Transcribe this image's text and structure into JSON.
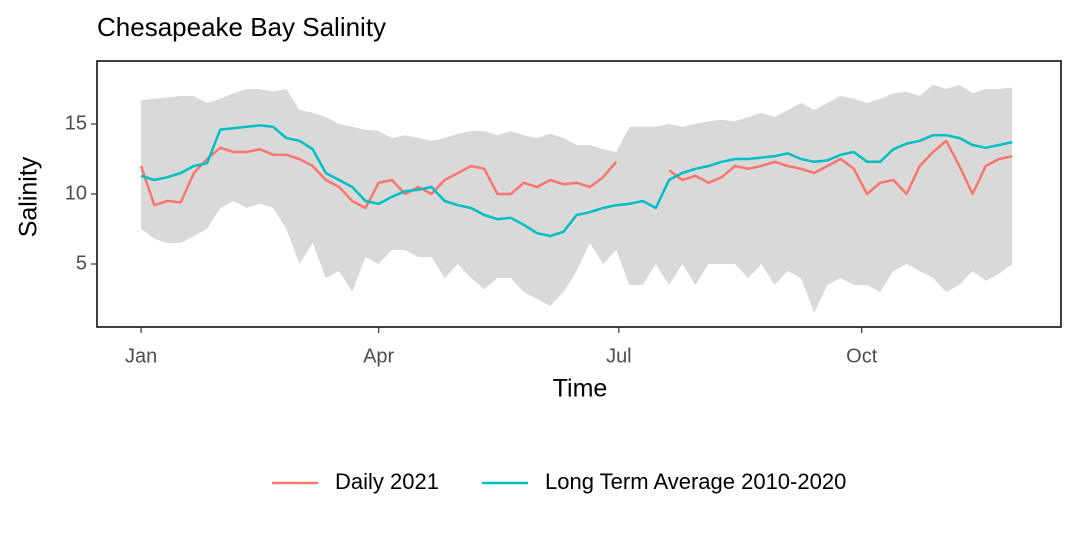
{
  "chart_data": {
    "type": "line",
    "title": "Chesapeake Bay Salinity",
    "x_label": "Time",
    "y_label": "Salinity",
    "x": [
      1,
      6,
      11,
      16,
      21,
      26,
      31,
      36,
      41,
      46,
      51,
      56,
      61,
      66,
      71,
      76,
      81,
      86,
      91,
      96,
      101,
      106,
      111,
      116,
      121,
      126,
      131,
      136,
      141,
      146,
      151,
      156,
      161,
      166,
      171,
      176,
      181,
      186,
      191,
      196,
      201,
      206,
      211,
      216,
      221,
      226,
      231,
      236,
      241,
      246,
      251,
      256,
      261,
      266,
      271,
      276,
      281,
      286,
      291,
      296,
      301,
      306,
      311,
      316,
      321,
      326,
      331
    ],
    "xlim": [
      -15.7,
      349.5
    ],
    "xticks": [
      {
        "value": 1,
        "label": "Jan"
      },
      {
        "value": 91,
        "label": "Apr"
      },
      {
        "value": 182,
        "label": "Jul"
      },
      {
        "value": 274,
        "label": "Oct"
      }
    ],
    "ylim": [
      0.5,
      19.5
    ],
    "yticks": [
      5,
      10,
      15
    ],
    "legend": "bottom",
    "ribbon": {
      "color": "#d9d9d9",
      "lower": [
        7.5,
        6.8,
        6.5,
        6.5,
        7.0,
        7.5,
        9.0,
        9.5,
        9.0,
        9.3,
        9.0,
        7.5,
        5.0,
        6.5,
        4.0,
        4.5,
        3.0,
        5.5,
        5.0,
        6.0,
        6.0,
        5.5,
        5.5,
        4.0,
        5.0,
        4.0,
        3.2,
        4.0,
        4.0,
        3.0,
        2.5,
        2.0,
        3.0,
        4.5,
        6.5,
        5.0,
        6.0,
        3.5,
        3.5,
        5.0,
        3.5,
        5.0,
        3.5,
        5.0,
        5.0,
        5.0,
        4.0,
        5.0,
        3.5,
        4.5,
        4.0,
        1.5,
        3.5,
        4.0,
        3.5,
        3.5,
        3.0,
        4.5,
        5.0,
        4.5,
        4.0,
        3.0,
        3.5,
        4.5,
        3.8,
        4.3,
        5.0
      ],
      "upper": [
        16.7,
        16.8,
        16.9,
        17.0,
        17.0,
        16.5,
        16.8,
        17.2,
        17.5,
        17.5,
        17.3,
        17.5,
        16.0,
        15.8,
        15.5,
        15.0,
        14.8,
        14.6,
        14.5,
        14.0,
        14.2,
        14.0,
        13.8,
        14.0,
        14.3,
        14.5,
        14.5,
        14.2,
        14.5,
        14.2,
        14.0,
        14.3,
        14.0,
        13.5,
        13.5,
        13.2,
        13.0,
        14.8,
        14.8,
        14.8,
        15.0,
        14.8,
        15.0,
        15.2,
        15.3,
        15.2,
        15.5,
        15.8,
        15.5,
        16.0,
        16.5,
        16.0,
        16.5,
        17.0,
        16.8,
        16.5,
        16.8,
        17.2,
        17.3,
        17.0,
        17.8,
        17.5,
        17.8,
        17.2,
        17.5,
        17.5,
        17.6
      ]
    },
    "series": [
      {
        "name": "Daily 2021",
        "color": "#F8766D",
        "values": [
          12.0,
          9.2,
          9.5,
          9.4,
          11.5,
          12.5,
          13.3,
          13.0,
          13.0,
          13.2,
          12.8,
          12.8,
          12.5,
          12.0,
          11.0,
          10.5,
          9.5,
          9.0,
          10.8,
          11.0,
          10.0,
          10.5,
          10.0,
          11.0,
          11.5,
          12.0,
          11.8,
          10.0,
          10.0,
          10.8,
          10.5,
          11.0,
          10.7,
          10.8,
          10.5,
          11.2,
          12.3,
          null,
          null,
          null,
          11.7,
          11.0,
          11.3,
          10.8,
          11.2,
          12.0,
          11.8,
          12.0,
          12.3,
          12.0,
          11.8,
          11.5,
          12.0,
          12.5,
          11.8,
          10.0,
          10.8,
          11.0,
          10.0,
          12.0,
          13.0,
          13.8,
          12.0,
          10.0,
          12.0,
          12.5,
          12.7
        ]
      },
      {
        "name": "Long Term Average 2010-2020",
        "color": "#00BFC4",
        "values": [
          11.3,
          11.0,
          11.2,
          11.5,
          12.0,
          12.2,
          14.6,
          14.7,
          14.8,
          14.9,
          14.8,
          14.0,
          13.8,
          13.2,
          11.5,
          11.0,
          10.5,
          9.5,
          9.3,
          9.8,
          10.2,
          10.3,
          10.5,
          9.5,
          9.2,
          9.0,
          8.5,
          8.2,
          8.3,
          7.8,
          7.2,
          7.0,
          7.3,
          8.5,
          8.7,
          9.0,
          9.2,
          9.3,
          9.5,
          9.0,
          11.0,
          11.5,
          11.8,
          12.0,
          12.3,
          12.5,
          12.5,
          12.6,
          12.7,
          12.9,
          12.5,
          12.3,
          12.4,
          12.8,
          13.0,
          12.3,
          12.3,
          13.2,
          13.6,
          13.8,
          14.2,
          14.2,
          14.0,
          13.5,
          13.3,
          13.5,
          13.7
        ]
      }
    ]
  }
}
